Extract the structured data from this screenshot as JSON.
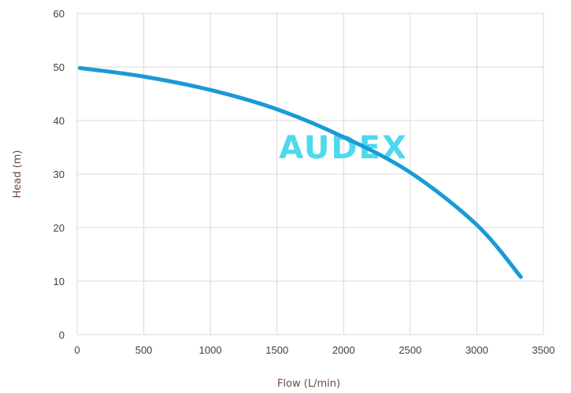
{
  "chart_data": {
    "type": "line",
    "xlabel": "Flow (L/min)",
    "ylabel": "Head (m)",
    "xlim": [
      0,
      3500
    ],
    "ylim": [
      0,
      60
    ],
    "xticks": [
      "0",
      "500",
      "1000",
      "1500",
      "2000",
      "2500",
      "3000",
      "3500"
    ],
    "yticks": [
      "0",
      "10",
      "20",
      "30",
      "40",
      "50",
      "60"
    ],
    "grid": true,
    "series": [
      {
        "color": "#1a9ad6",
        "x": [
          20,
          500,
          1000,
          1500,
          2000,
          2500,
          3000,
          3330
        ],
        "y": [
          49.8,
          48.2,
          45.7,
          42.1,
          36.9,
          30.3,
          20.5,
          10.8
        ]
      }
    ]
  },
  "watermark": "AUDEX"
}
